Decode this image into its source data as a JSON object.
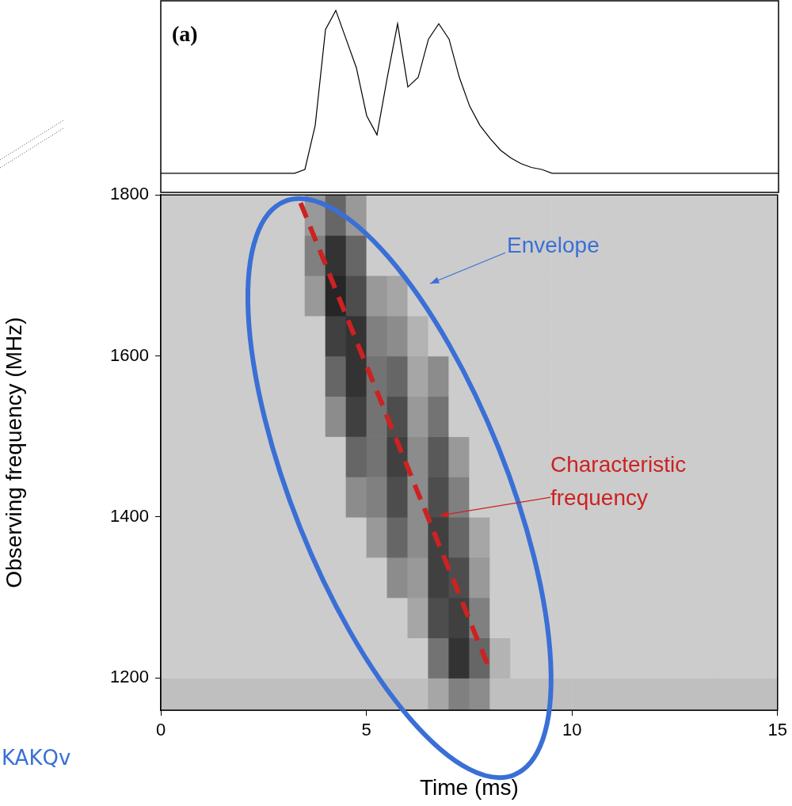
{
  "chart_data": [
    {
      "type": "line",
      "panel_label": "(a)",
      "color": "#000000",
      "tick_labels": false,
      "grid": false,
      "xlim": [
        0,
        15
      ],
      "ylim": [
        0,
        1
      ],
      "x": [
        0,
        0.25,
        0.5,
        0.75,
        1,
        1.25,
        1.5,
        1.75,
        2,
        2.25,
        2.5,
        2.75,
        3,
        3.25,
        3.5,
        3.75,
        4,
        4.25,
        4.5,
        4.75,
        5,
        5.25,
        5.5,
        5.75,
        6,
        6.25,
        6.5,
        6.75,
        7,
        7.25,
        7.5,
        7.75,
        8,
        8.25,
        8.5,
        8.75,
        9,
        9.25,
        9.5,
        9.75,
        10,
        10.25,
        10.5,
        10.75,
        11,
        11.25,
        11.5,
        11.75,
        12,
        12.25,
        12.5,
        12.75,
        13,
        13.25,
        13.5,
        13.75,
        14,
        14.25,
        14.5,
        14.75,
        15
      ],
      "values": [
        0.1,
        0.1,
        0.1,
        0.1,
        0.1,
        0.1,
        0.1,
        0.1,
        0.1,
        0.1,
        0.1,
        0.1,
        0.1,
        0.1,
        0.12,
        0.35,
        0.85,
        0.95,
        0.8,
        0.65,
        0.4,
        0.3,
        0.6,
        0.88,
        0.55,
        0.6,
        0.8,
        0.88,
        0.8,
        0.6,
        0.45,
        0.35,
        0.28,
        0.22,
        0.18,
        0.15,
        0.13,
        0.12,
        0.1,
        0.1,
        0.1,
        0.1,
        0.1,
        0.1,
        0.1,
        0.1,
        0.1,
        0.1,
        0.1,
        0.1,
        0.1,
        0.1,
        0.1,
        0.1,
        0.1,
        0.1,
        0.1,
        0.1,
        0.1,
        0.1,
        0.1
      ]
    },
    {
      "type": "heatmap",
      "xlabel": "Time (ms)",
      "ylabel": "Observing frequency (MHz)",
      "grid": false,
      "xlim": [
        0,
        15
      ],
      "ylim": [
        1160,
        1800
      ],
      "xticks": [
        0,
        5,
        10,
        15
      ],
      "yticks": [
        1200,
        1400,
        1600,
        1800
      ],
      "x_bins": [
        0,
        0.5,
        1,
        1.5,
        2,
        2.5,
        3,
        3.5,
        4,
        4.5,
        5,
        5.5,
        6,
        6.5,
        7,
        7.5,
        8,
        8.5,
        9,
        9.5,
        10,
        10.5,
        11,
        11.5,
        12,
        12.5,
        13,
        13.5,
        14,
        14.5,
        15
      ],
      "y_bins": [
        1160,
        1200,
        1250,
        1300,
        1350,
        1400,
        1450,
        1500,
        1550,
        1600,
        1650,
        1700,
        1750,
        1800
      ],
      "cells": [
        [
          0.25,
          0.25,
          0.25,
          0.25,
          0.25,
          0.25,
          0.25,
          0.25,
          0.25,
          0.25,
          0.25,
          0.25,
          0.25,
          0.35,
          0.5,
          0.45,
          0.25,
          0.25,
          0.25,
          0.25,
          0.25,
          0.25,
          0.25,
          0.25,
          0.25,
          0.25,
          0.25,
          0.25,
          0.25,
          0.25
        ],
        [
          0.2,
          0.2,
          0.2,
          0.2,
          0.2,
          0.2,
          0.2,
          0.2,
          0.2,
          0.2,
          0.2,
          0.2,
          0.2,
          0.55,
          0.8,
          0.6,
          0.3,
          0.2,
          0.2,
          0.2,
          0.2,
          0.2,
          0.2,
          0.2,
          0.2,
          0.2,
          0.2,
          0.2,
          0.2,
          0.2
        ],
        [
          0.2,
          0.2,
          0.2,
          0.2,
          0.2,
          0.2,
          0.2,
          0.2,
          0.2,
          0.2,
          0.2,
          0.2,
          0.35,
          0.7,
          0.75,
          0.5,
          0.2,
          0.2,
          0.2,
          0.2,
          0.2,
          0.2,
          0.2,
          0.2,
          0.2,
          0.2,
          0.2,
          0.2,
          0.2,
          0.2
        ],
        [
          0.2,
          0.2,
          0.2,
          0.2,
          0.2,
          0.2,
          0.2,
          0.2,
          0.2,
          0.2,
          0.2,
          0.45,
          0.4,
          0.75,
          0.7,
          0.4,
          0.2,
          0.2,
          0.2,
          0.2,
          0.2,
          0.2,
          0.2,
          0.2,
          0.2,
          0.2,
          0.2,
          0.2,
          0.2,
          0.2
        ],
        [
          0.2,
          0.2,
          0.2,
          0.2,
          0.2,
          0.2,
          0.2,
          0.2,
          0.2,
          0.2,
          0.4,
          0.6,
          0.45,
          0.75,
          0.6,
          0.35,
          0.2,
          0.2,
          0.2,
          0.2,
          0.2,
          0.2,
          0.2,
          0.2,
          0.2,
          0.2,
          0.2,
          0.2,
          0.2,
          0.2
        ],
        [
          0.2,
          0.2,
          0.2,
          0.2,
          0.2,
          0.2,
          0.2,
          0.2,
          0.2,
          0.45,
          0.5,
          0.7,
          0.45,
          0.7,
          0.5,
          0.2,
          0.2,
          0.2,
          0.2,
          0.2,
          0.2,
          0.2,
          0.2,
          0.2,
          0.2,
          0.2,
          0.2,
          0.2,
          0.2,
          0.2
        ],
        [
          0.2,
          0.2,
          0.2,
          0.2,
          0.2,
          0.2,
          0.2,
          0.2,
          0.2,
          0.6,
          0.55,
          0.75,
          0.45,
          0.65,
          0.4,
          0.2,
          0.2,
          0.2,
          0.2,
          0.2,
          0.2,
          0.2,
          0.2,
          0.2,
          0.2,
          0.2,
          0.2,
          0.2,
          0.2,
          0.2
        ],
        [
          0.2,
          0.2,
          0.2,
          0.2,
          0.2,
          0.2,
          0.2,
          0.2,
          0.45,
          0.75,
          0.55,
          0.7,
          0.4,
          0.55,
          0.2,
          0.2,
          0.2,
          0.2,
          0.2,
          0.2,
          0.2,
          0.2,
          0.2,
          0.2,
          0.2,
          0.2,
          0.2,
          0.2,
          0.2,
          0.2
        ],
        [
          0.2,
          0.2,
          0.2,
          0.2,
          0.2,
          0.2,
          0.2,
          0.2,
          0.6,
          0.8,
          0.55,
          0.6,
          0.35,
          0.45,
          0.2,
          0.2,
          0.2,
          0.2,
          0.2,
          0.2,
          0.2,
          0.2,
          0.2,
          0.2,
          0.2,
          0.2,
          0.2,
          0.2,
          0.2,
          0.2
        ],
        [
          0.2,
          0.2,
          0.2,
          0.2,
          0.2,
          0.2,
          0.2,
          0.2,
          0.75,
          0.8,
          0.5,
          0.45,
          0.3,
          0.2,
          0.2,
          0.2,
          0.2,
          0.2,
          0.2,
          0.2,
          0.2,
          0.2,
          0.2,
          0.2,
          0.2,
          0.2,
          0.2,
          0.2,
          0.2,
          0.2
        ],
        [
          0.2,
          0.2,
          0.2,
          0.2,
          0.2,
          0.2,
          0.2,
          0.4,
          0.85,
          0.7,
          0.4,
          0.35,
          0.2,
          0.2,
          0.2,
          0.2,
          0.2,
          0.2,
          0.2,
          0.2,
          0.2,
          0.2,
          0.2,
          0.2,
          0.2,
          0.2,
          0.2,
          0.2,
          0.2,
          0.2
        ],
        [
          0.2,
          0.2,
          0.2,
          0.2,
          0.2,
          0.2,
          0.2,
          0.5,
          0.8,
          0.6,
          0.2,
          0.2,
          0.2,
          0.2,
          0.2,
          0.2,
          0.2,
          0.2,
          0.2,
          0.2,
          0.2,
          0.2,
          0.2,
          0.2,
          0.2,
          0.2,
          0.2,
          0.2,
          0.2,
          0.2
        ],
        [
          0.2,
          0.2,
          0.2,
          0.2,
          0.2,
          0.2,
          0.2,
          0.4,
          0.6,
          0.4,
          0.2,
          0.2,
          0.2,
          0.2,
          0.2,
          0.2,
          0.2,
          0.2,
          0.2,
          0.2,
          0.2,
          0.2,
          0.2,
          0.2,
          0.2,
          0.2,
          0.2,
          0.2,
          0.2,
          0.2
        ]
      ],
      "annotations": [
        {
          "text": "Envelope",
          "color": "#3a6fd6"
        },
        {
          "text": "Characteristic frequency",
          "color": "#cc2222",
          "line_style": "dashed",
          "x": [
            3.4,
            8.0
          ],
          "y": [
            1790,
            1210
          ]
        }
      ]
    }
  ],
  "page_text": [
    "KAKQv"
  ]
}
